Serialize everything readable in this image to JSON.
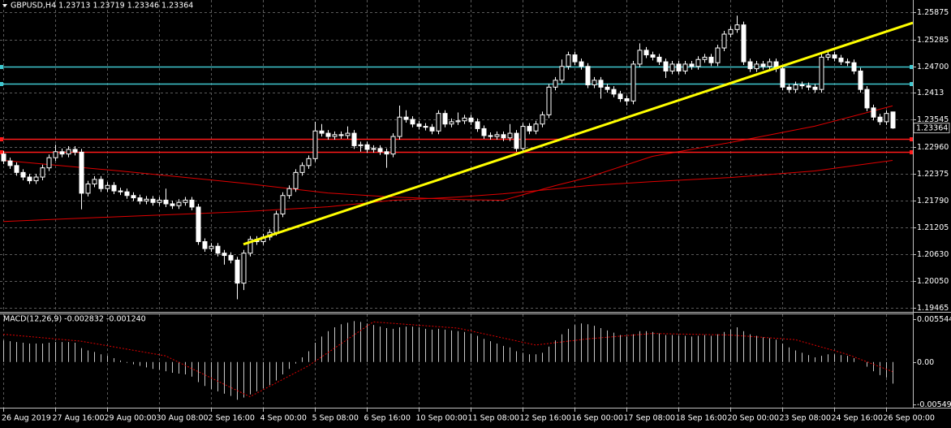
{
  "chart_data": [
    {
      "type": "candlestick",
      "title": "GBPUSD,H4  1.23713 1.23719 1.23346 1.23364",
      "open": [
        1.228,
        1.2265,
        1.2255,
        1.224,
        1.223,
        1.2222,
        1.223,
        1.225,
        1.2272,
        1.2285,
        1.228,
        1.229,
        1.2284,
        1.2195,
        1.2215,
        1.2225,
        1.2205,
        1.2212,
        1.22,
        1.2198,
        1.219,
        1.2185,
        1.2178,
        1.2182,
        1.2175,
        1.218,
        1.2172,
        1.2168,
        1.2175,
        1.218,
        1.2165,
        1.209,
        1.2075,
        1.208,
        1.2065,
        1.206,
        1.205,
        1.2,
        1.2065,
        1.2095,
        1.209,
        1.21,
        1.211,
        1.215,
        1.219,
        1.2205,
        1.224,
        1.2255,
        1.227,
        1.233,
        1.2325,
        1.2318,
        1.2322,
        1.232,
        1.2325,
        1.2298,
        1.23,
        1.229,
        1.2292,
        1.2285,
        1.228,
        1.2318,
        1.236,
        1.2355,
        1.2345,
        1.234,
        1.2338,
        1.233,
        1.2368,
        1.2345,
        1.235,
        1.2352,
        1.2358,
        1.235,
        1.2335,
        1.232,
        1.2318,
        1.2322,
        1.2315,
        1.2325,
        1.2292,
        1.234,
        1.233,
        1.2345,
        1.2365,
        1.2425,
        1.244,
        1.247,
        1.2495,
        1.248,
        1.247,
        1.243,
        1.244,
        1.2425,
        1.242,
        1.241,
        1.24,
        1.2395,
        1.2475,
        1.2505,
        1.2495,
        1.249,
        1.248,
        1.246,
        1.2475,
        1.246,
        1.2475,
        1.247,
        1.2485,
        1.249,
        1.2478,
        1.251,
        1.254,
        1.255,
        1.256,
        1.248,
        1.2465,
        1.2475,
        1.247,
        1.248,
        1.2465,
        1.2425,
        1.242,
        1.243,
        1.2428,
        1.2425,
        1.242,
        1.249,
        1.2495,
        1.2488,
        1.248,
        1.2478,
        1.246,
        1.242,
        1.238,
        1.236,
        1.235,
        1.23713
      ],
      "high": [
        1.2287,
        1.2272,
        1.2262,
        1.2247,
        1.2237,
        1.2237,
        1.2257,
        1.2279,
        1.23,
        1.2292,
        1.2297,
        1.2297,
        1.2291,
        1.2222,
        1.2232,
        1.2232,
        1.2219,
        1.2219,
        1.2207,
        1.2205,
        1.2197,
        1.2192,
        1.2189,
        1.2189,
        1.2187,
        1.2205,
        1.2179,
        1.2182,
        1.2187,
        1.2187,
        1.2172,
        1.2097,
        1.2087,
        1.2087,
        1.2072,
        1.2067,
        1.2057,
        1.2072,
        1.2102,
        1.2102,
        1.2107,
        1.2117,
        1.2157,
        1.2197,
        1.2212,
        1.2247,
        1.2262,
        1.2277,
        1.235,
        1.2345,
        1.2332,
        1.2329,
        1.2329,
        1.234,
        1.2332,
        1.2307,
        1.2307,
        1.2299,
        1.2299,
        1.2292,
        1.2325,
        1.2385,
        1.2375,
        1.2362,
        1.2352,
        1.2347,
        1.2345,
        1.2375,
        1.2375,
        1.2357,
        1.237,
        1.2365,
        1.2365,
        1.2357,
        1.2342,
        1.2327,
        1.2329,
        1.2329,
        1.2345,
        1.2332,
        1.2347,
        1.2347,
        1.2352,
        1.2372,
        1.2432,
        1.2447,
        1.2485,
        1.2502,
        1.2502,
        1.2487,
        1.2477,
        1.2447,
        1.2447,
        1.2432,
        1.2427,
        1.2417,
        1.2407,
        1.2482,
        1.252,
        1.2512,
        1.2502,
        1.2497,
        1.2487,
        1.2482,
        1.2482,
        1.2482,
        1.2482,
        1.2492,
        1.2497,
        1.2497,
        1.2517,
        1.2547,
        1.2557,
        1.258,
        1.2567,
        1.2487,
        1.2482,
        1.2482,
        1.2487,
        1.2487,
        1.2472,
        1.2432,
        1.2437,
        1.2437,
        1.2435,
        1.2432,
        1.2497,
        1.2502,
        1.2502,
        1.2495,
        1.2487,
        1.2485,
        1.2467,
        1.2427,
        1.2387,
        1.2367,
        1.2375,
        1.23719
      ],
      "low": [
        1.2258,
        1.2248,
        1.2233,
        1.2223,
        1.2215,
        1.2215,
        1.2223,
        1.2243,
        1.2265,
        1.2273,
        1.2273,
        1.2277,
        1.216,
        1.2188,
        1.2208,
        1.2198,
        1.2198,
        1.2193,
        1.2191,
        1.2183,
        1.2178,
        1.2171,
        1.2171,
        1.2168,
        1.2168,
        1.2165,
        1.2161,
        1.2161,
        1.2168,
        1.2158,
        1.2083,
        1.2068,
        1.2068,
        1.2058,
        1.204,
        1.2043,
        1.1965,
        1.1985,
        1.2058,
        1.2083,
        1.2083,
        1.2093,
        1.2103,
        1.2143,
        1.2183,
        1.2198,
        1.2233,
        1.2248,
        1.2263,
        1.2318,
        1.2311,
        1.2311,
        1.2313,
        1.2313,
        1.2291,
        1.2285,
        1.2283,
        1.2283,
        1.2278,
        1.225,
        1.2273,
        1.2311,
        1.2348,
        1.2338,
        1.2333,
        1.2331,
        1.2323,
        1.2323,
        1.2338,
        1.2338,
        1.2343,
        1.2345,
        1.2343,
        1.2328,
        1.2313,
        1.2311,
        1.2311,
        1.2308,
        1.2308,
        1.2285,
        1.2285,
        1.2323,
        1.2323,
        1.2338,
        1.2358,
        1.2418,
        1.2433,
        1.2463,
        1.2473,
        1.2463,
        1.2423,
        1.2423,
        1.24,
        1.2413,
        1.2403,
        1.2393,
        1.2385,
        1.2388,
        1.2468,
        1.2488,
        1.2483,
        1.2473,
        1.2445,
        1.2453,
        1.2453,
        1.2453,
        1.2463,
        1.2463,
        1.2478,
        1.2471,
        1.2471,
        1.2503,
        1.2533,
        1.2543,
        1.2473,
        1.2458,
        1.2458,
        1.2463,
        1.2463,
        1.2458,
        1.2418,
        1.2413,
        1.2413,
        1.2421,
        1.2418,
        1.2413,
        1.2413,
        1.2483,
        1.2481,
        1.2473,
        1.2471,
        1.2453,
        1.2413,
        1.2373,
        1.2353,
        1.2343,
        1.2343,
        1.23346
      ],
      "close": [
        1.2265,
        1.2255,
        1.224,
        1.223,
        1.2222,
        1.223,
        1.225,
        1.2272,
        1.2285,
        1.228,
        1.229,
        1.2284,
        1.2195,
        1.2215,
        1.2225,
        1.2205,
        1.2212,
        1.22,
        1.2198,
        1.219,
        1.2185,
        1.2178,
        1.2182,
        1.2175,
        1.218,
        1.2172,
        1.2168,
        1.2175,
        1.218,
        1.2165,
        1.209,
        1.2075,
        1.208,
        1.2065,
        1.206,
        1.205,
        1.2,
        1.2065,
        1.2095,
        1.209,
        1.21,
        1.211,
        1.215,
        1.219,
        1.2205,
        1.224,
        1.2255,
        1.227,
        1.233,
        1.2325,
        1.2318,
        1.2322,
        1.232,
        1.2325,
        1.2298,
        1.23,
        1.229,
        1.2292,
        1.2285,
        1.228,
        1.2318,
        1.236,
        1.2355,
        1.2345,
        1.234,
        1.2338,
        1.233,
        1.2368,
        1.2345,
        1.235,
        1.2352,
        1.2358,
        1.235,
        1.2335,
        1.232,
        1.2318,
        1.2322,
        1.2315,
        1.2325,
        1.2292,
        1.234,
        1.233,
        1.2345,
        1.2365,
        1.2425,
        1.244,
        1.247,
        1.2495,
        1.248,
        1.247,
        1.243,
        1.244,
        1.2425,
        1.242,
        1.241,
        1.24,
        1.2395,
        1.2475,
        1.2505,
        1.2495,
        1.249,
        1.248,
        1.246,
        1.2475,
        1.246,
        1.2475,
        1.247,
        1.2485,
        1.249,
        1.2478,
        1.251,
        1.254,
        1.255,
        1.256,
        1.248,
        1.2465,
        1.2475,
        1.247,
        1.248,
        1.2465,
        1.2425,
        1.242,
        1.243,
        1.2428,
        1.2425,
        1.242,
        1.249,
        1.2495,
        1.2488,
        1.248,
        1.2478,
        1.246,
        1.242,
        1.238,
        1.236,
        1.235,
        1.2368,
        1.23364
      ],
      "up_color": "#000000",
      "down_color": "#ffffff",
      "outline_color": "#ffffff",
      "xlim": [
        -0.5,
        140.125
      ],
      "xticks": [
        {
          "value": 0,
          "label": "26 Aug 2019"
        },
        {
          "value": 8,
          "label": "27 Aug 16:00"
        },
        {
          "value": 16,
          "label": "29 Aug 00:00"
        },
        {
          "value": 24,
          "label": "30 Aug 08:00"
        },
        {
          "value": 32,
          "label": "2 Sep 16:00"
        },
        {
          "value": 40,
          "label": "4 Sep 00:00"
        },
        {
          "value": 48,
          "label": "5 Sep 08:00"
        },
        {
          "value": 56,
          "label": "6 Sep 16:00"
        },
        {
          "value": 64,
          "label": "10 Sep 00:00"
        },
        {
          "value": 72,
          "label": "11 Sep 08:00"
        },
        {
          "value": 80,
          "label": "12 Sep 16:00"
        },
        {
          "value": 88,
          "label": "16 Sep 00:00"
        },
        {
          "value": 96,
          "label": "17 Sep 08:00"
        },
        {
          "value": 104,
          "label": "18 Sep 16:00"
        },
        {
          "value": 112,
          "label": "20 Sep 00:00"
        },
        {
          "value": 120,
          "label": "23 Sep 08:00"
        },
        {
          "value": 128,
          "label": "24 Sep 16:00"
        },
        {
          "value": 136,
          "label": "26 Sep 00:00"
        }
      ],
      "ylim": [
        1.19377,
        1.2614
      ],
      "yticks": [
        1.25875,
        1.25285,
        {
          "value": 1.247,
          "label": "1.24700"
        },
        1.2413,
        1.23545,
        {
          "value": 1.2296,
          "label": "1.22960"
        },
        1.22375,
        {
          "value": 1.2179,
          "label": "1.21790"
        },
        1.21205,
        {
          "value": 1.2063,
          "label": "1.20630"
        },
        {
          "value": 1.2005,
          "label": "1.20050"
        },
        1.19465
      ],
      "grid": true,
      "grid_color": "#5a5a5a",
      "moving_averages": [
        {
          "color": "#e00000",
          "x": [
            0,
            18,
            37,
            50,
            60,
            70,
            77,
            85,
            90,
            100,
            112,
            125,
            137
          ],
          "values": [
            1.22661,
            1.22432,
            1.22167,
            1.21955,
            1.21867,
            1.21814,
            1.21796,
            1.22114,
            1.2229,
            1.2275,
            1.2305,
            1.23403,
            1.23844
          ]
        },
        {
          "color": "#e00000",
          "x": [
            0,
            18,
            37,
            50,
            60,
            70,
            77,
            85,
            90,
            100,
            112,
            125,
            137
          ],
          "values": [
            1.21337,
            1.21443,
            1.21549,
            1.21655,
            1.21796,
            1.21867,
            1.21937,
            1.22043,
            1.22114,
            1.22202,
            1.2229,
            1.22432,
            1.22661
          ]
        }
      ],
      "levels": [
        {
          "value": 1.247,
          "color": "#3fc8d0"
        },
        {
          "value": 1.24321,
          "color": "#3fc8d0"
        },
        {
          "value": 1.2312,
          "color": "#ff1a1a"
        },
        {
          "value": 1.22838,
          "color": "#ff1a1a"
        }
      ],
      "trendline": {
        "x": [
          37,
          140.125
        ],
        "values": [
          1.20842,
          1.25645
        ],
        "color": "#ffff00"
      }
    },
    {
      "type": "macd",
      "title": "MACD(12,26,9) -0.002832 -0.001240",
      "histogram": [
        0.0028,
        0.0027,
        0.0026,
        0.0025,
        0.0024,
        0.0024,
        0.0024,
        0.0025,
        0.0026,
        0.0026,
        0.0026,
        0.0025,
        0.0018,
        0.0015,
        0.0013,
        0.001,
        0.0008,
        0.0005,
        0.0002,
        -0.0001,
        -0.0003,
        -0.0005,
        -0.0007,
        -0.0009,
        -0.001,
        -0.0012,
        -0.0014,
        -0.0015,
        -0.0016,
        -0.0019,
        -0.0026,
        -0.0031,
        -0.0035,
        -0.0038,
        -0.0041,
        -0.0044,
        -0.0049,
        -0.0046,
        -0.0042,
        -0.0038,
        -0.0034,
        -0.003,
        -0.0024,
        -0.0016,
        -0.0009,
        -0.0002,
        0.0006,
        0.0014,
        0.0025,
        0.0033,
        0.004,
        0.0045,
        0.0049,
        0.0051,
        0.0053,
        0.0052,
        0.005,
        0.0048,
        0.0046,
        0.0044,
        0.0043,
        0.0045,
        0.0046,
        0.0046,
        0.0045,
        0.0043,
        0.0042,
        0.0043,
        0.0042,
        0.0041,
        0.004,
        0.0039,
        0.0037,
        0.0034,
        0.003,
        0.0027,
        0.0024,
        0.0021,
        0.0019,
        0.0014,
        0.0012,
        0.001,
        0.001,
        0.0012,
        0.002,
        0.0028,
        0.0036,
        0.0043,
        0.0048,
        0.005,
        0.0049,
        0.0047,
        0.0044,
        0.0041,
        0.0038,
        0.0035,
        0.0033,
        0.0036,
        0.004,
        0.004,
        0.0039,
        0.0037,
        0.0035,
        0.0035,
        0.0034,
        0.0034,
        0.0033,
        0.0034,
        0.0035,
        0.0034,
        0.0036,
        0.0039,
        0.0042,
        0.0045,
        0.004,
        0.0036,
        0.0034,
        0.0032,
        0.0031,
        0.0029,
        0.0024,
        0.0019,
        0.0015,
        0.0012,
        0.0009,
        0.0006,
        0.0008,
        0.001,
        0.001,
        0.0009,
        0.0008,
        0.0005,
        0.0,
        -0.0006,
        -0.0012,
        -0.0017,
        -0.002,
        -0.0028
      ],
      "histogram_color": "#c8c8c8",
      "signal": {
        "color": "#e00000",
        "x": [
          0,
          12,
          25,
          38,
          47,
          57,
          70,
          82,
          90,
          100,
          112,
          122,
          130,
          137
        ],
        "values": [
          0.0036,
          0.0027,
          0.0008,
          -0.0045,
          -0.0005,
          0.0052,
          0.0044,
          0.0022,
          0.003,
          0.0037,
          0.0035,
          0.0029,
          0.001,
          -0.00124
        ]
      },
      "ylim": [
        -0.005922,
        0.006187
      ],
      "yticks": [
        0.005544,
        {
          "value": 0,
          "label": "0.00"
        },
        -0.005493
      ]
    }
  ]
}
